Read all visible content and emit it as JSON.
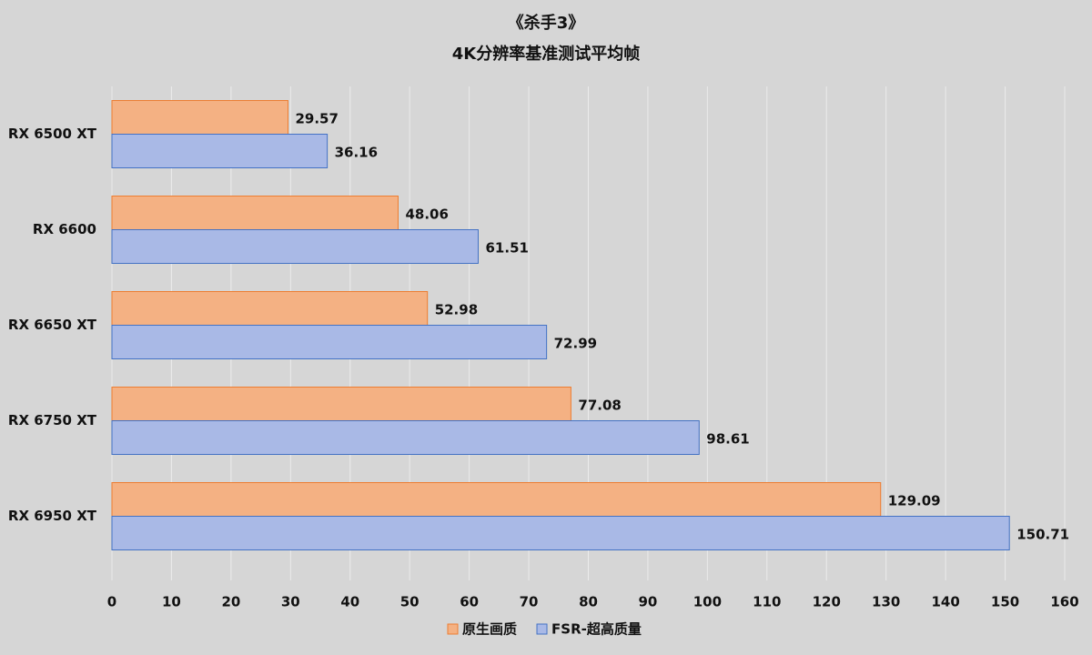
{
  "chart_data": {
    "type": "bar",
    "orientation": "horizontal",
    "title": "《杀手3》",
    "subtitle": "4K分辨率基准测试平均帧",
    "categories": [
      "RX 6500 XT",
      "RX 6600",
      "RX 6650 XT",
      "RX 6750 XT",
      "RX 6950 XT"
    ],
    "series": [
      {
        "name": "原生画质",
        "color": "#f4b183",
        "border": "#ed7d31",
        "values": [
          29.57,
          48.06,
          52.98,
          77.08,
          129.09
        ]
      },
      {
        "name": "FSR-超高质量",
        "color": "#a9b9e6",
        "border": "#4472c4",
        "values": [
          36.16,
          61.51,
          72.99,
          98.61,
          150.71
        ]
      }
    ],
    "xlim": [
      0,
      160
    ],
    "xticks": [
      0,
      10,
      20,
      30,
      40,
      50,
      60,
      70,
      80,
      90,
      100,
      110,
      120,
      130,
      140,
      150,
      160
    ],
    "grid": true,
    "legend": "bottom"
  }
}
